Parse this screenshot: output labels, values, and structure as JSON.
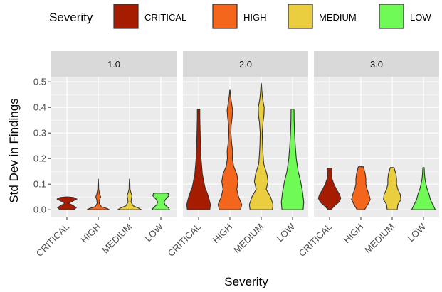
{
  "chart_data": {
    "type": "violin",
    "xlabel": "Severity",
    "ylabel": "Std Dev in Findings",
    "ylim": [
      -0.03,
      0.52
    ],
    "yticks": [
      0.0,
      0.1,
      0.2,
      0.3,
      0.4,
      0.5
    ],
    "ytick_labels": [
      "0.0",
      "0.1",
      "0.2",
      "0.3",
      "0.4",
      "0.5"
    ],
    "categories": [
      "CRITICAL",
      "HIGH",
      "MEDIUM",
      "LOW"
    ],
    "legend": {
      "title": "Severity",
      "position": "top",
      "entries": [
        "CRITICAL",
        "HIGH",
        "MEDIUM",
        "LOW"
      ]
    },
    "colors": {
      "CRITICAL": "#A61C00",
      "HIGH": "#F4661B",
      "MEDIUM": "#EACE3F",
      "LOW": "#6FFA55",
      "panel_background": "#EBEBEB",
      "strip_background": "#D9D9D9",
      "grid_major": "#FFFFFF"
    },
    "grid": true,
    "panels": [
      {
        "label": "1.0",
        "violins": [
          {
            "category": "CRITICAL",
            "profile": [
              [
                0.0,
                0.55
              ],
              [
                0.008,
                0.75
              ],
              [
                0.018,
                0.45
              ],
              [
                0.025,
                0.15
              ],
              [
                0.033,
                0.45
              ],
              [
                0.042,
                0.8
              ],
              [
                0.048,
                0.55
              ],
              [
                0.05,
                0.1
              ]
            ]
          },
          {
            "category": "HIGH",
            "profile": [
              [
                0.0,
                0.9
              ],
              [
                0.005,
                0.7
              ],
              [
                0.012,
                0.25
              ],
              [
                0.025,
                0.08
              ],
              [
                0.04,
                0.12
              ],
              [
                0.05,
                0.2
              ],
              [
                0.06,
                0.12
              ],
              [
                0.08,
                0.04
              ],
              [
                0.1,
                0.03
              ],
              [
                0.12,
                0.01
              ]
            ]
          },
          {
            "category": "MEDIUM",
            "profile": [
              [
                0.0,
                0.95
              ],
              [
                0.006,
                0.75
              ],
              [
                0.015,
                0.3
              ],
              [
                0.03,
                0.12
              ],
              [
                0.045,
                0.16
              ],
              [
                0.055,
                0.2
              ],
              [
                0.065,
                0.12
              ],
              [
                0.08,
                0.04
              ],
              [
                0.1,
                0.03
              ],
              [
                0.12,
                0.01
              ]
            ]
          },
          {
            "category": "LOW",
            "profile": [
              [
                0.0,
                0.7
              ],
              [
                0.008,
                0.6
              ],
              [
                0.018,
                0.35
              ],
              [
                0.03,
                0.25
              ],
              [
                0.042,
                0.4
              ],
              [
                0.055,
                0.65
              ],
              [
                0.063,
                0.6
              ],
              [
                0.065,
                0.45
              ]
            ]
          }
        ]
      },
      {
        "label": "2.0",
        "violins": [
          {
            "category": "CRITICAL",
            "profile": [
              [
                0.0,
                0.9
              ],
              [
                0.02,
                0.95
              ],
              [
                0.05,
                0.8
              ],
              [
                0.09,
                0.5
              ],
              [
                0.14,
                0.3
              ],
              [
                0.2,
                0.2
              ],
              [
                0.26,
                0.15
              ],
              [
                0.32,
                0.12
              ],
              [
                0.36,
                0.1
              ],
              [
                0.39,
                0.1
              ],
              [
                0.393,
                0.1
              ]
            ]
          },
          {
            "category": "HIGH",
            "profile": [
              [
                0.0,
                0.85
              ],
              [
                0.02,
                0.95
              ],
              [
                0.05,
                0.7
              ],
              [
                0.08,
                0.55
              ],
              [
                0.11,
                0.65
              ],
              [
                0.14,
                0.55
              ],
              [
                0.17,
                0.3
              ],
              [
                0.2,
                0.2
              ],
              [
                0.23,
                0.22
              ],
              [
                0.26,
                0.14
              ],
              [
                0.3,
                0.08
              ],
              [
                0.33,
                0.1
              ],
              [
                0.36,
                0.18
              ],
              [
                0.39,
                0.22
              ],
              [
                0.42,
                0.12
              ],
              [
                0.45,
                0.04
              ],
              [
                0.47,
                0.01
              ]
            ]
          },
          {
            "category": "MEDIUM",
            "profile": [
              [
                0.0,
                0.9
              ],
              [
                0.02,
                0.95
              ],
              [
                0.05,
                0.75
              ],
              [
                0.08,
                0.4
              ],
              [
                0.11,
                0.55
              ],
              [
                0.14,
                0.45
              ],
              [
                0.18,
                0.2
              ],
              [
                0.22,
                0.14
              ],
              [
                0.26,
                0.1
              ],
              [
                0.3,
                0.08
              ],
              [
                0.34,
                0.14
              ],
              [
                0.37,
                0.22
              ],
              [
                0.4,
                0.24
              ],
              [
                0.43,
                0.12
              ],
              [
                0.46,
                0.06
              ],
              [
                0.49,
                0.02
              ],
              [
                0.495,
                0.0
              ]
            ]
          },
          {
            "category": "LOW",
            "profile": [
              [
                0.0,
                0.85
              ],
              [
                0.03,
                0.9
              ],
              [
                0.07,
                0.8
              ],
              [
                0.11,
                0.65
              ],
              [
                0.15,
                0.45
              ],
              [
                0.2,
                0.3
              ],
              [
                0.25,
                0.22
              ],
              [
                0.3,
                0.16
              ],
              [
                0.35,
                0.13
              ],
              [
                0.39,
                0.12
              ],
              [
                0.393,
                0.12
              ]
            ]
          }
        ]
      },
      {
        "label": "3.0",
        "violins": [
          {
            "category": "CRITICAL",
            "profile": [
              [
                0.0,
                0.1
              ],
              [
                0.015,
                0.4
              ],
              [
                0.03,
                0.75
              ],
              [
                0.045,
                0.9
              ],
              [
                0.06,
                0.8
              ],
              [
                0.08,
                0.55
              ],
              [
                0.1,
                0.35
              ],
              [
                0.12,
                0.2
              ],
              [
                0.14,
                0.15
              ],
              [
                0.16,
                0.2
              ],
              [
                0.163,
                0.18
              ]
            ]
          },
          {
            "category": "HIGH",
            "profile": [
              [
                0.0,
                0.3
              ],
              [
                0.02,
                0.55
              ],
              [
                0.04,
                0.75
              ],
              [
                0.06,
                0.65
              ],
              [
                0.08,
                0.5
              ],
              [
                0.1,
                0.4
              ],
              [
                0.12,
                0.4
              ],
              [
                0.14,
                0.35
              ],
              [
                0.16,
                0.25
              ],
              [
                0.168,
                0.2
              ]
            ]
          },
          {
            "category": "MEDIUM",
            "profile": [
              [
                0.0,
                0.4
              ],
              [
                0.02,
                0.45
              ],
              [
                0.04,
                0.7
              ],
              [
                0.06,
                0.65
              ],
              [
                0.08,
                0.45
              ],
              [
                0.1,
                0.35
              ],
              [
                0.12,
                0.35
              ],
              [
                0.14,
                0.3
              ],
              [
                0.16,
                0.18
              ],
              [
                0.165,
                0.15
              ]
            ]
          },
          {
            "category": "LOW",
            "profile": [
              [
                0.0,
                0.95
              ],
              [
                0.02,
                0.75
              ],
              [
                0.04,
                0.55
              ],
              [
                0.06,
                0.45
              ],
              [
                0.08,
                0.3
              ],
              [
                0.1,
                0.2
              ],
              [
                0.12,
                0.12
              ],
              [
                0.14,
                0.08
              ],
              [
                0.16,
                0.06
              ],
              [
                0.165,
                0.05
              ]
            ]
          }
        ]
      }
    ]
  }
}
